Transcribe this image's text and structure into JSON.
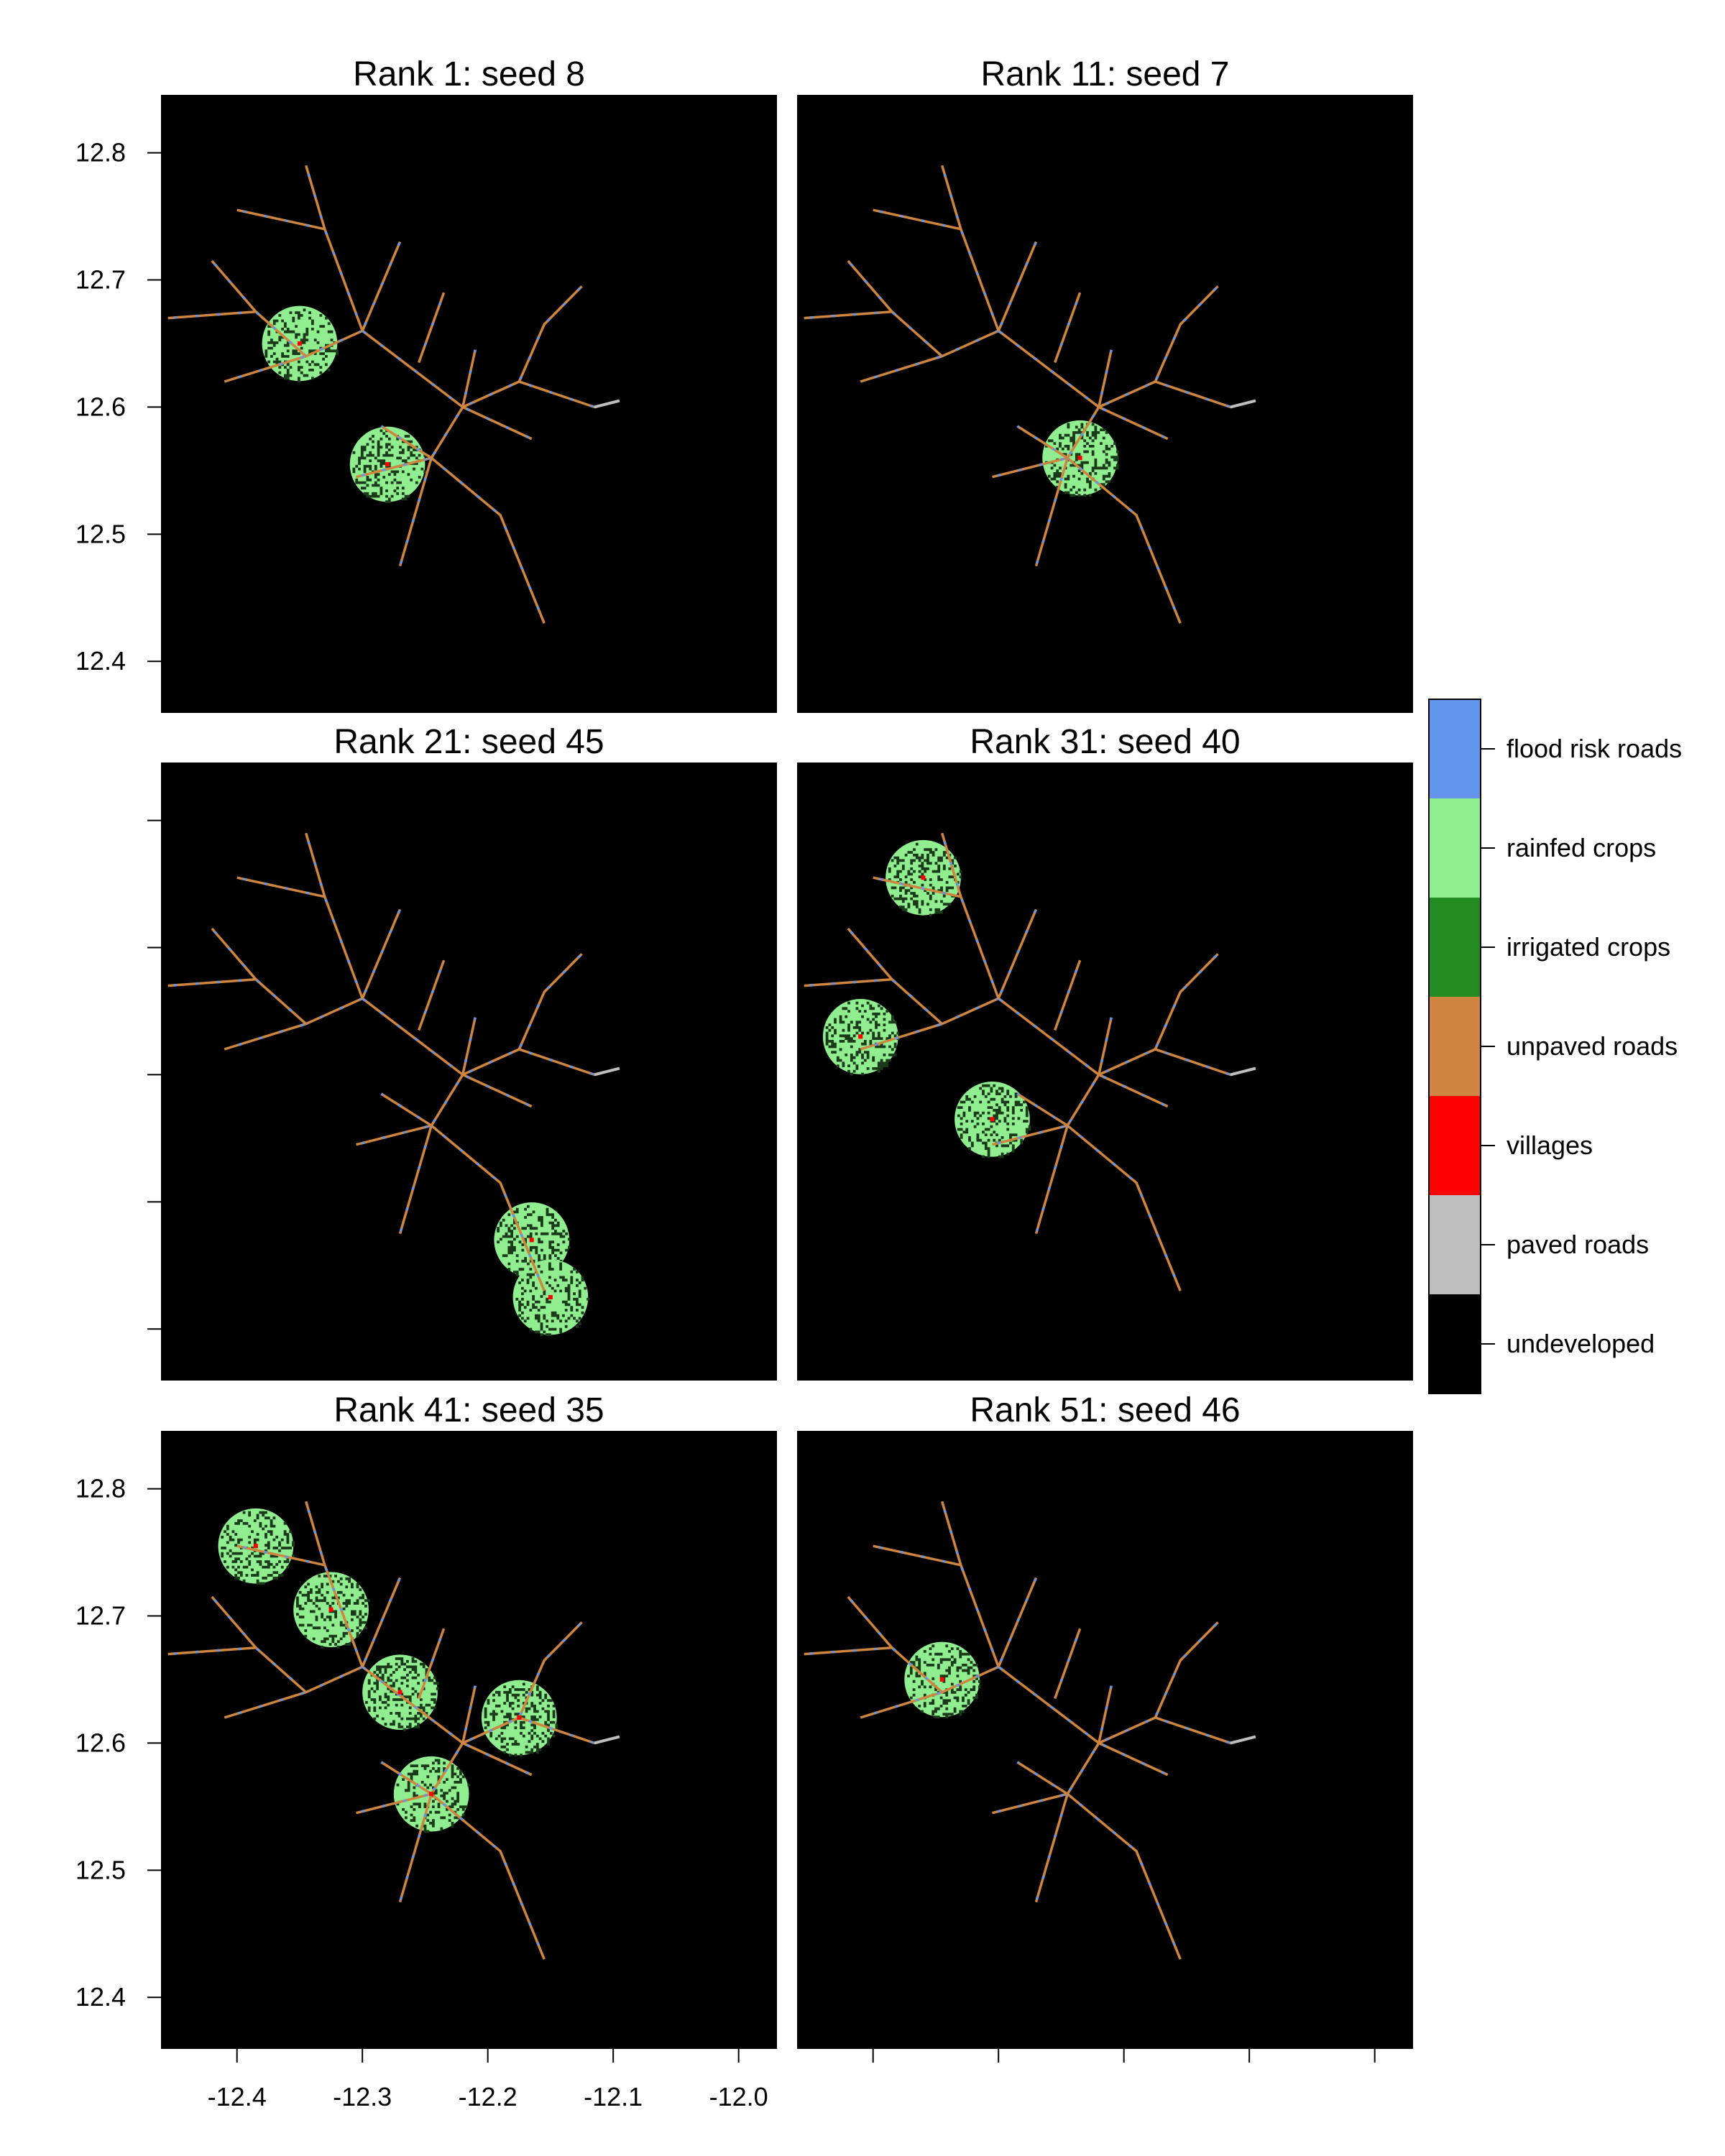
{
  "chart_data": {
    "type": "heatmap",
    "x_ticks": [
      "-12.4",
      "-12.3",
      "-12.2",
      "-12.1",
      "-12.0"
    ],
    "y_ticks": [
      "12.4",
      "12.5",
      "12.6",
      "12.7",
      "12.8"
    ],
    "xlim": [
      -12.46,
      -11.97
    ],
    "ylim": [
      12.36,
      12.845
    ],
    "legend_position": "right",
    "legend": [
      {
        "label": "flood risk roads",
        "color": "#6495ED"
      },
      {
        "label": "rainfed crops",
        "color": "#90EE90"
      },
      {
        "label": "irrigated crops",
        "color": "#228B22"
      },
      {
        "label": "unpaved roads",
        "color": "#CD853F"
      },
      {
        "label": "villages",
        "color": "#FF0000"
      },
      {
        "label": "paved roads",
        "color": "#BEBEBE"
      },
      {
        "label": "undeveloped",
        "color": "#000000"
      }
    ],
    "panels": [
      {
        "title": "Rank 1: seed 8",
        "crop_circles": [
          [
            -12.35,
            12.65
          ],
          [
            -12.28,
            12.555
          ]
        ]
      },
      {
        "title": "Rank 11: seed 7",
        "crop_circles": [
          [
            -12.235,
            12.56
          ]
        ]
      },
      {
        "title": "Rank 21: seed 45",
        "crop_circles": [
          [
            -12.165,
            12.47
          ],
          [
            -12.15,
            12.425
          ]
        ]
      },
      {
        "title": "Rank 31: seed 40",
        "crop_circles": [
          [
            -12.36,
            12.755
          ],
          [
            -12.41,
            12.63
          ],
          [
            -12.305,
            12.565
          ]
        ]
      },
      {
        "title": "Rank 41: seed 35",
        "crop_circles": [
          [
            -12.385,
            12.755
          ],
          [
            -12.325,
            12.705
          ],
          [
            -12.27,
            12.64
          ],
          [
            -12.175,
            12.62
          ],
          [
            -12.245,
            12.56
          ]
        ]
      },
      {
        "title": "Rank 51: seed 46",
        "crop_circles": [
          [
            -12.345,
            12.65
          ]
        ]
      }
    ],
    "roads": [
      [
        [
          -12.3,
          12.66
        ],
        [
          -12.345,
          12.64
        ],
        [
          -12.41,
          12.62
        ]
      ],
      [
        [
          -12.3,
          12.66
        ],
        [
          -12.33,
          12.74
        ],
        [
          -12.4,
          12.755
        ]
      ],
      [
        [
          -12.33,
          12.74
        ],
        [
          -12.345,
          12.79
        ]
      ],
      [
        [
          -12.3,
          12.66
        ],
        [
          -12.27,
          12.73
        ]
      ],
      [
        [
          -12.3,
          12.66
        ],
        [
          -12.22,
          12.6
        ],
        [
          -12.165,
          12.575
        ]
      ],
      [
        [
          -12.255,
          12.635
        ],
        [
          -12.235,
          12.69
        ]
      ],
      [
        [
          -12.22,
          12.6
        ],
        [
          -12.21,
          12.645
        ]
      ],
      [
        [
          -12.22,
          12.6
        ],
        [
          -12.175,
          12.62
        ],
        [
          -12.115,
          12.6
        ],
        [
          -12.095,
          12.605
        ]
      ],
      [
        [
          -12.175,
          12.62
        ],
        [
          -12.155,
          12.665
        ],
        [
          -12.125,
          12.695
        ]
      ],
      [
        [
          -12.345,
          12.64
        ],
        [
          -12.385,
          12.675
        ],
        [
          -12.42,
          12.715
        ]
      ],
      [
        [
          -12.385,
          12.675
        ],
        [
          -12.455,
          12.67
        ]
      ],
      [
        [
          -12.22,
          12.6
        ],
        [
          -12.245,
          12.56
        ],
        [
          -12.285,
          12.585
        ]
      ],
      [
        [
          -12.245,
          12.56
        ],
        [
          -12.305,
          12.545
        ]
      ],
      [
        [
          -12.245,
          12.56
        ],
        [
          -12.27,
          12.475
        ]
      ],
      [
        [
          -12.245,
          12.56
        ],
        [
          -12.19,
          12.515
        ],
        [
          -12.155,
          12.43
        ]
      ]
    ]
  }
}
